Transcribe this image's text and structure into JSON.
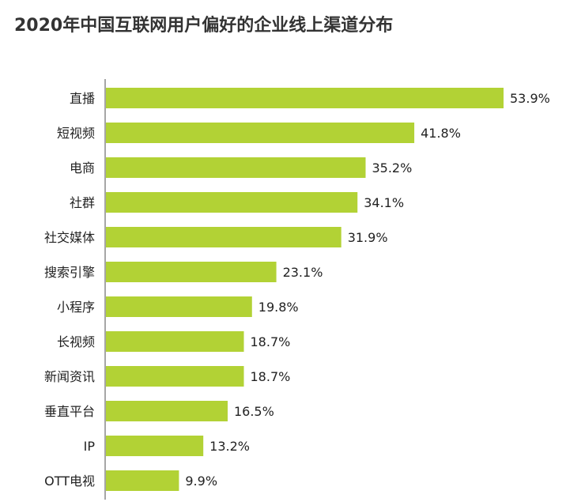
{
  "chart_data": {
    "type": "bar",
    "orientation": "horizontal",
    "title": "2020年中国互联网用户偏好的企业线上渠道分布",
    "categories": [
      "直播",
      "短视频",
      "电商",
      "社群",
      "社交媒体",
      "搜索引擎",
      "小程序",
      "长视频",
      "新闻资讯",
      "垂直平台",
      "IP",
      "OTT电视"
    ],
    "values": [
      53.9,
      41.8,
      35.2,
      34.1,
      31.9,
      23.1,
      19.8,
      18.7,
      18.7,
      16.5,
      13.2,
      9.9
    ],
    "value_labels": [
      "53.9%",
      "41.8%",
      "35.2%",
      "34.1%",
      "31.9%",
      "23.1%",
      "19.8%",
      "18.7%",
      "18.7%",
      "16.5%",
      "13.2%",
      "9.9%"
    ],
    "xlabel": "",
    "ylabel": "",
    "xlim": [
      0,
      53.9
    ],
    "grid": false,
    "bar_color": "#b2d235"
  }
}
